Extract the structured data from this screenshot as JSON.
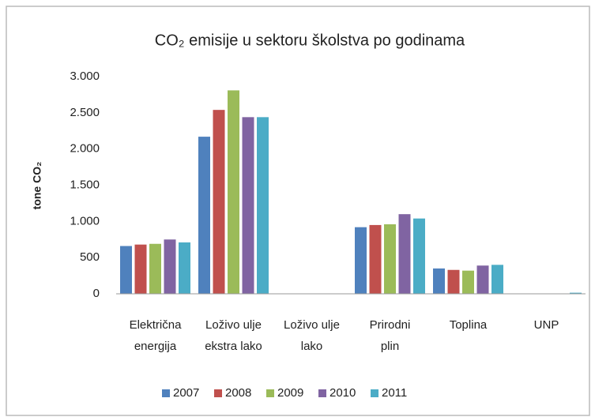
{
  "chart_data": {
    "type": "bar",
    "title": "CO₂ emisije u sektoru školstva po godinama",
    "y_label": "tone CO₂",
    "categories": [
      [
        "Električna",
        "energija"
      ],
      [
        "Loživo ulje",
        "ekstra lako"
      ],
      [
        "Loživo ulje",
        "lako"
      ],
      [
        "Prirodni",
        "plin"
      ],
      [
        "Toplina"
      ],
      [
        "UNP"
      ]
    ],
    "series": [
      {
        "name": "2007",
        "color": "#4f81bd",
        "values": [
          660,
          2170,
          0,
          920,
          350,
          0
        ]
      },
      {
        "name": "2008",
        "color": "#c0504d",
        "values": [
          680,
          2540,
          0,
          950,
          330,
          0
        ]
      },
      {
        "name": "2009",
        "color": "#9bbb59",
        "values": [
          690,
          2810,
          0,
          960,
          320,
          0
        ]
      },
      {
        "name": "2010",
        "color": "#8064a2",
        "values": [
          750,
          2440,
          0,
          1100,
          390,
          0
        ]
      },
      {
        "name": "2011",
        "color": "#4bacc6",
        "values": [
          710,
          2440,
          0,
          1040,
          400,
          15
        ]
      }
    ],
    "ylim": [
      0,
      3000
    ],
    "yticks": [
      0,
      500,
      {
        "value": 1000,
        "label": "1.000"
      },
      {
        "value": 1500,
        "label": "1.500"
      },
      {
        "value": 2000,
        "label": "2.000"
      },
      {
        "value": 2500,
        "label": "2.500"
      },
      {
        "value": 3000,
        "label": "3.000"
      }
    ],
    "grid": false,
    "legend": "bottom"
  }
}
